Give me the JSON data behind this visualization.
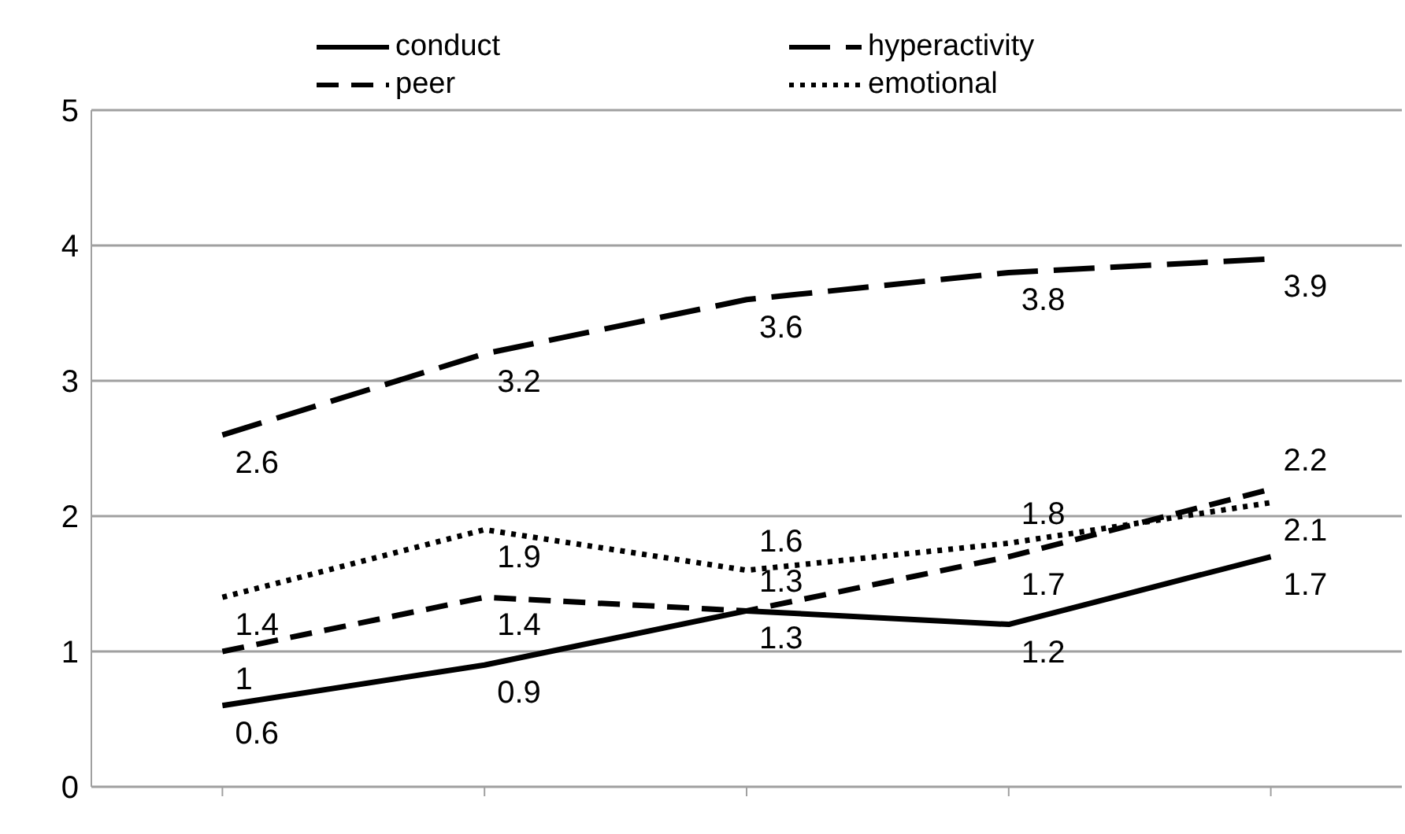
{
  "chart_data": {
    "type": "line",
    "categories": [
      null,
      null,
      null,
      null,
      null
    ],
    "series": [
      {
        "name": "conduct",
        "color": "#000000",
        "line_style": "solid",
        "values": [
          0.6,
          0.9,
          1.3,
          1.2,
          1.7
        ]
      },
      {
        "name": "hyperactivity",
        "color": "#000000",
        "line_style": "longdash",
        "values": [
          2.6,
          3.2,
          3.6,
          3.8,
          3.9
        ]
      },
      {
        "name": "peer",
        "color": "#000000",
        "line_style": "dashed",
        "values": [
          1,
          1.4,
          1.3,
          1.7,
          2.2
        ]
      },
      {
        "name": "emotional",
        "color": "#000000",
        "line_style": "dotted",
        "values": [
          1.4,
          1.9,
          1.6,
          1.8,
          2.1
        ]
      }
    ],
    "ylim": [
      0,
      5
    ],
    "yticks": [
      0,
      1,
      2,
      3,
      4,
      5
    ],
    "grid": "y",
    "legend": "top",
    "marker": "none",
    "data_labels": true
  }
}
